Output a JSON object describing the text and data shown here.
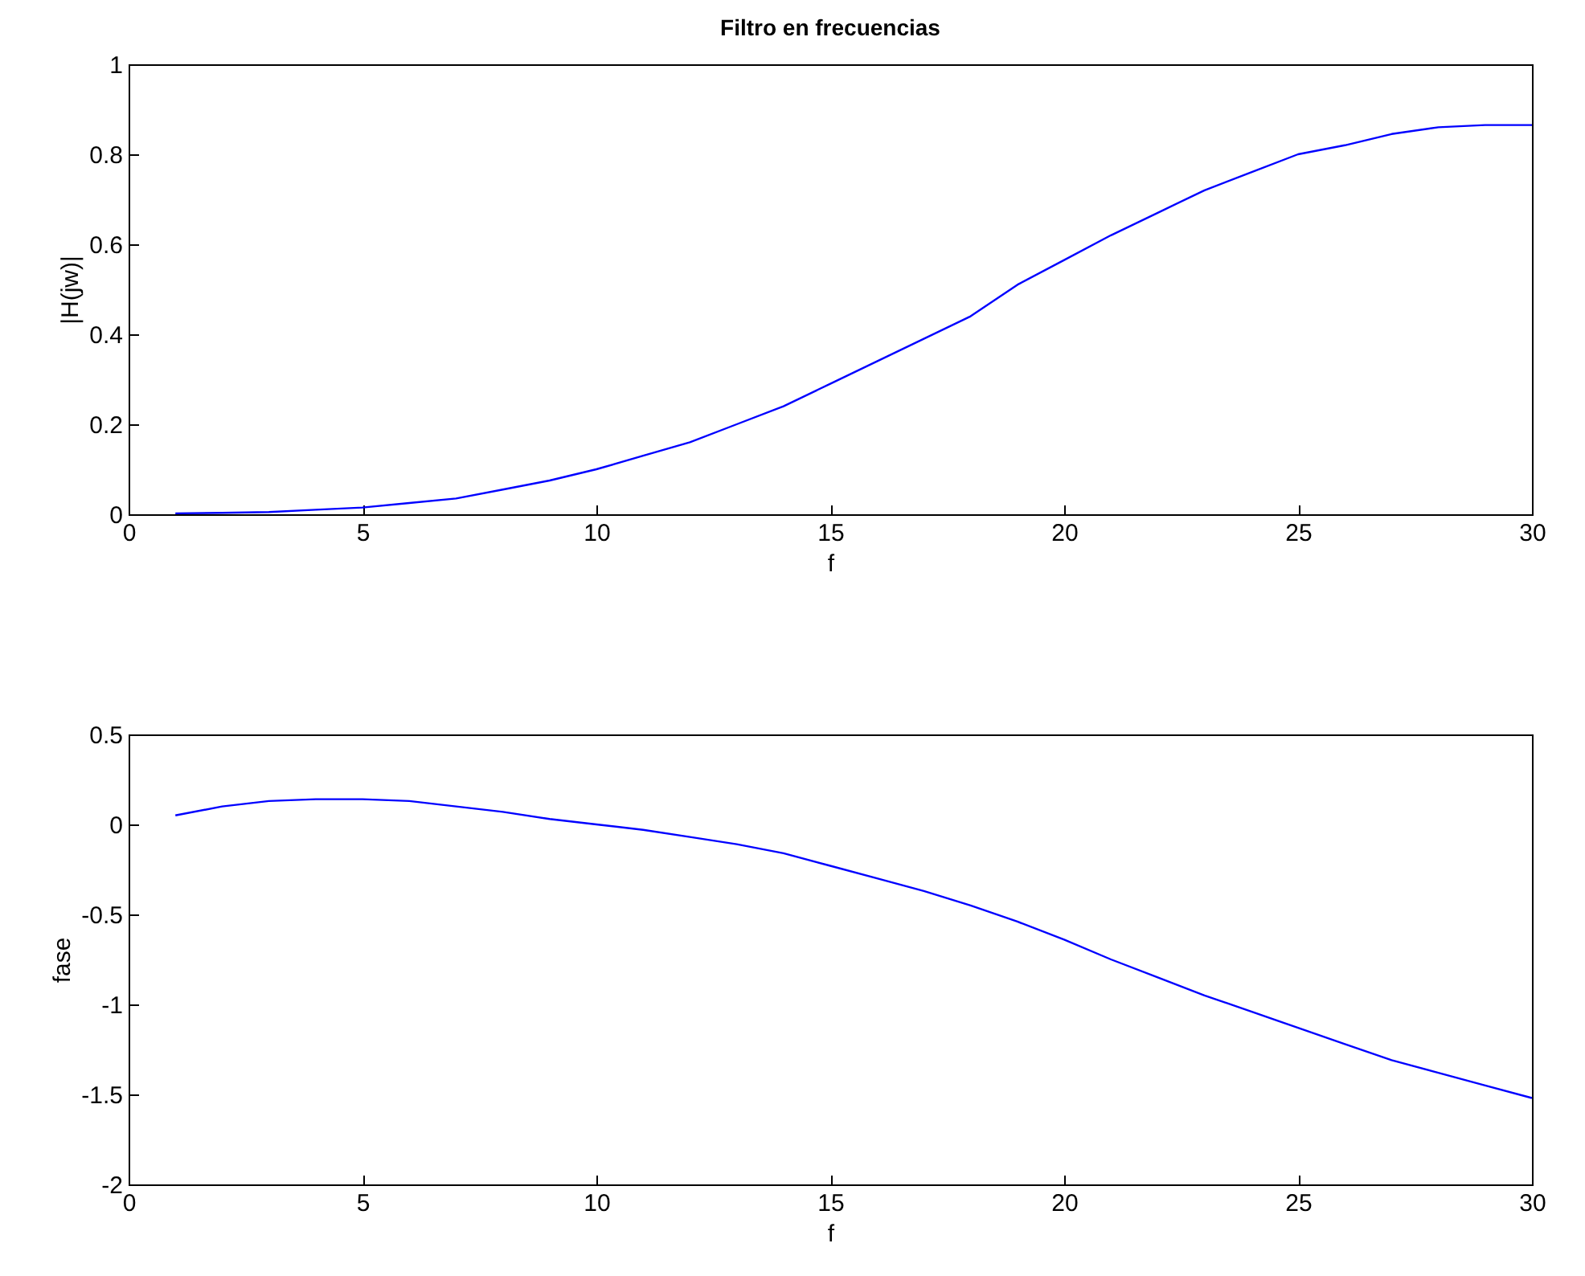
{
  "chart_data": [
    {
      "type": "line",
      "title": "Filtro en frecuencias",
      "xlabel": "f",
      "ylabel": "|H(jw)|",
      "x": [
        1,
        2,
        3,
        4,
        5,
        6,
        7,
        8,
        9,
        10,
        11,
        12,
        13,
        14,
        15,
        16,
        17,
        18,
        19,
        20,
        21,
        22,
        23,
        24,
        25,
        26,
        27,
        28,
        29,
        30
      ],
      "series": [
        {
          "color": "#0000ff",
          "values": [
            0.002,
            0.003,
            0.005,
            0.01,
            0.015,
            0.025,
            0.035,
            0.055,
            0.075,
            0.1,
            0.13,
            0.16,
            0.2,
            0.24,
            0.29,
            0.34,
            0.39,
            0.44,
            0.51,
            0.565,
            0.62,
            0.67,
            0.72,
            0.76,
            0.8,
            0.82,
            0.845,
            0.86,
            0.865,
            0.865
          ]
        }
      ],
      "xlim": [
        0,
        30
      ],
      "xticks": [
        0,
        5,
        10,
        15,
        20,
        25,
        30
      ],
      "ylim": [
        0,
        1
      ],
      "yticks": [
        0,
        0.2,
        0.4,
        0.6,
        0.8,
        1
      ],
      "grid": false,
      "line_style": "solid"
    },
    {
      "type": "line",
      "xlabel": "f",
      "ylabel": "fase",
      "x": [
        1,
        2,
        3,
        4,
        5,
        6,
        7,
        8,
        9,
        10,
        11,
        12,
        13,
        14,
        15,
        16,
        17,
        18,
        19,
        20,
        21,
        22,
        23,
        24,
        25,
        26,
        27,
        28,
        29,
        30
      ],
      "series": [
        {
          "color": "#0000ff",
          "values": [
            0.05,
            0.1,
            0.13,
            0.14,
            0.14,
            0.13,
            0.1,
            0.07,
            0.03,
            0,
            -0.03,
            -0.07,
            -0.11,
            -0.16,
            -0.23,
            -0.3,
            -0.37,
            -0.45,
            -0.54,
            -0.64,
            -0.75,
            -0.85,
            -0.95,
            -1.04,
            -1.13,
            -1.22,
            -1.31,
            -1.38,
            -1.45,
            -1.52
          ]
        }
      ],
      "xlim": [
        0,
        30
      ],
      "xticks": [
        0,
        5,
        10,
        15,
        20,
        25,
        30
      ],
      "ylim": [
        -2,
        0.5
      ],
      "yticks": [
        -2,
        -1.5,
        -1,
        -0.5,
        0,
        0.5
      ],
      "grid": false,
      "line_style": "solid"
    }
  ]
}
